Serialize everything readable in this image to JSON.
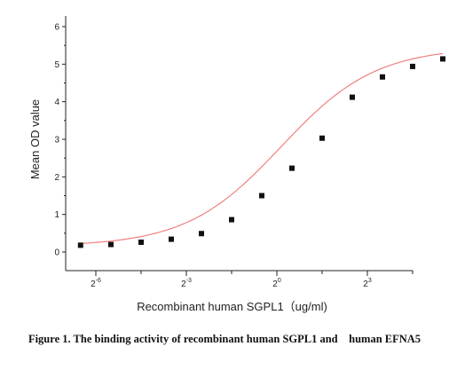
{
  "chart_data": {
    "type": "scatter",
    "xlabel": "Recombinant human  SGPL1（ug/ml)",
    "ylabel": "Mean OD value",
    "x_scale": "log2",
    "xlim": [
      0.0078125,
      22.627
    ],
    "ylim": [
      0,
      6
    ],
    "yticks": [
      0,
      1,
      2,
      3,
      4,
      5,
      6
    ],
    "xticks": [
      {
        "base": "2",
        "exp": "-6",
        "value": 0.015625
      },
      {
        "base": "2",
        "exp": "-3",
        "value": 0.125
      },
      {
        "base": "2",
        "exp": "0",
        "value": 1
      },
      {
        "base": "2",
        "exp": "3",
        "value": 8
      }
    ],
    "series": [
      {
        "marker_color": "#111111",
        "curve_color": "#f08080",
        "x": [
          0.011,
          0.0221,
          0.0442,
          0.0884,
          0.1768,
          0.3536,
          0.7071,
          1.4142,
          2.8284,
          5.6569,
          11.3137,
          22.6274
        ],
        "y": [
          0.18,
          0.2,
          0.26,
          0.34,
          0.49,
          0.86,
          1.5,
          2.23,
          3.03,
          4.12,
          4.66,
          4.94
        ]
      }
    ],
    "extra_point": {
      "x": 45.2548,
      "y": 5.14
    },
    "grid": false
  },
  "caption": "Figure 1. The binding activity of recombinant human SGPL1 and    human EFNA5"
}
